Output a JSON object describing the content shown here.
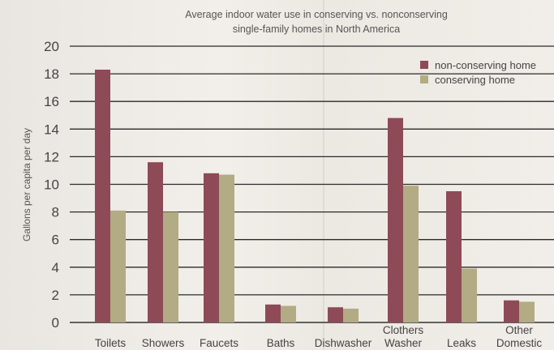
{
  "chart_data": {
    "type": "bar",
    "title_line1": "Average indoor water use in conserving vs. nonconserving",
    "title_line2": "single-family homes in North America",
    "ylabel": "Gallons per capita per day",
    "xlabel": "",
    "ylim": [
      0,
      20
    ],
    "yticks": [
      0,
      2,
      4,
      6,
      8,
      10,
      12,
      14,
      16,
      18,
      20
    ],
    "grid": true,
    "legend_position": "top-right",
    "categories": [
      [
        "Toilets"
      ],
      [
        "Showers"
      ],
      [
        "Faucets"
      ],
      [
        "Baths"
      ],
      [
        "Dishwasher"
      ],
      [
        "Clothers",
        "Washer"
      ],
      [
        "Leaks"
      ],
      [
        "Other",
        "Domestic"
      ]
    ],
    "series": [
      {
        "name": "non-conserving home",
        "color": "#8e4a57",
        "values": [
          18.3,
          11.6,
          10.8,
          1.3,
          1.1,
          14.8,
          9.5,
          1.6
        ]
      },
      {
        "name": "conserving home",
        "color": "#b2ab84",
        "values": [
          8.1,
          8.0,
          10.7,
          1.2,
          1.0,
          9.9,
          3.9,
          1.5
        ]
      }
    ]
  }
}
